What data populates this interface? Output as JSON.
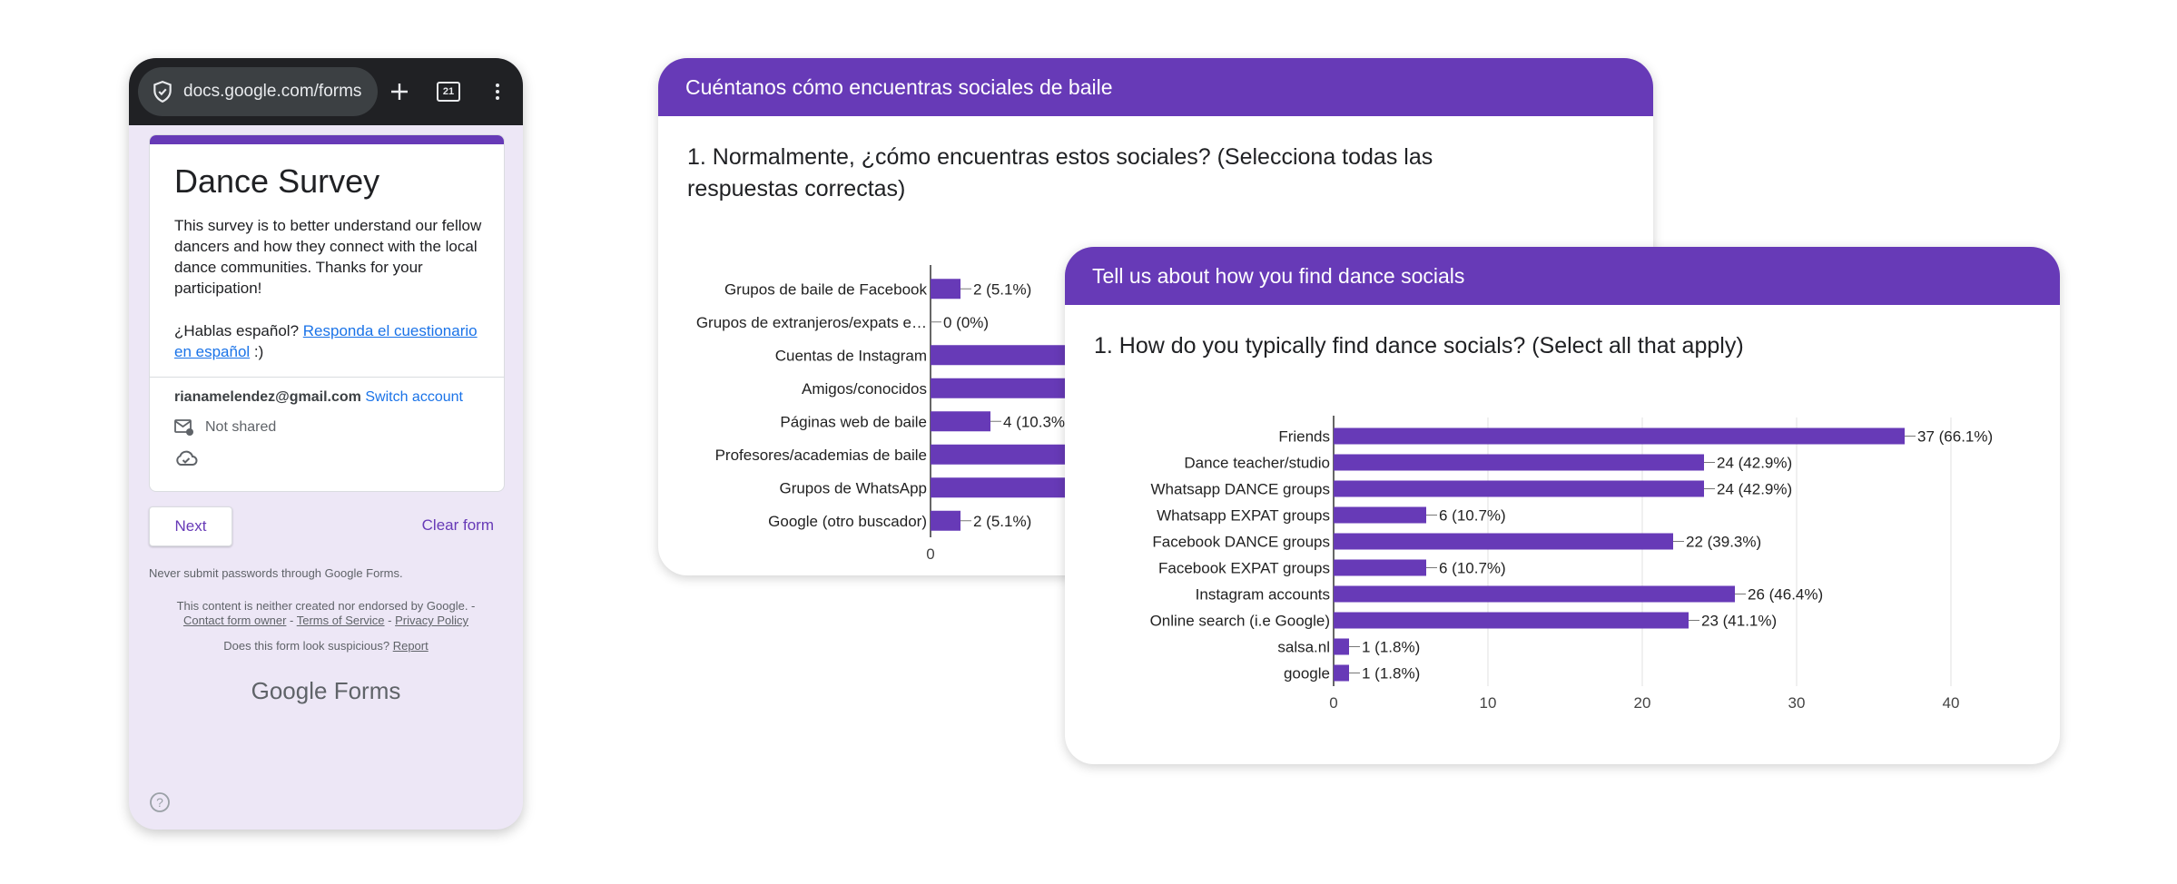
{
  "browser": {
    "url": "docs.google.com/forms",
    "tab_count": "21"
  },
  "form": {
    "title": "Dance Survey",
    "description": "This survey is to better understand our fellow dancers and how they connect with the local dance communities. Thanks for your participation!",
    "spanish_prompt": "¿Hablas español?",
    "spanish_link": "Responda el cuestionario en español",
    "spanish_suffix": " :)",
    "account_email": "rianamelendez@gmail.com",
    "switch_account": "Switch account",
    "not_shared": "Not shared",
    "next_button": "Next",
    "clear_form": "Clear form",
    "password_warning": "Never submit passwords through Google Forms.",
    "disclaimer_start": "This content is neither created nor endorsed by Google. -",
    "contact_owner": "Contact form owner",
    "terms": "Terms of Service",
    "privacy": "Privacy Policy",
    "sep": " - ",
    "suspicious_text": "Does this form look suspicious?",
    "report": "Report",
    "logo_google": "Google",
    "logo_forms": "Forms"
  },
  "colors": {
    "accent": "#673ab7",
    "bar": "#673ab7"
  },
  "card_es": {
    "header": "Cuéntanos cómo encuentras sociales de baile",
    "question": "1. Normalmente, ¿cómo encuentras estos sociales? (Selecciona todas las respuestas correctas)"
  },
  "card_en": {
    "header": "Tell us about how you find dance socials",
    "question": "1. How do you typically find dance socials? (Select all that apply)"
  },
  "chart_data": [
    {
      "type": "bar",
      "orientation": "horizontal",
      "categories": [
        "Grupos de baile de Facebook",
        "Grupos de extranjeros/expats e…",
        "Cuentas de Instagram",
        "Amigos/conocidos",
        "Páginas web de baile",
        "Profesores/academias de baile",
        "Grupos de WhatsApp",
        "Google (otro buscador)"
      ],
      "values": [
        2,
        0,
        null,
        null,
        4,
        null,
        null,
        2
      ],
      "data_labels": [
        "2 (5.1%)",
        "0 (0%)",
        "",
        "",
        "4 (10.3%",
        "",
        "",
        "2 (5.1%)"
      ],
      "ticks": [
        "0"
      ],
      "note": "partially obscured by overlapping card"
    },
    {
      "type": "bar",
      "orientation": "horizontal",
      "categories": [
        "Friends",
        "Dance teacher/studio",
        "Whatsapp DANCE groups",
        "Whatsapp EXPAT groups",
        "Facebook DANCE groups",
        "Facebook EXPAT groups",
        "Instagram accounts",
        "Online search (i.e Google)",
        "salsa.nl",
        "google"
      ],
      "values": [
        37,
        24,
        24,
        6,
        22,
        6,
        26,
        23,
        1,
        1
      ],
      "data_labels": [
        "37 (66.1%)",
        "24 (42.9%)",
        "24 (42.9%)",
        "6 (10.7%)",
        "22 (39.3%)",
        "6 (10.7%)",
        "26 (46.4%)",
        "23 (41.1%)",
        "1 (1.8%)",
        "1 (1.8%)"
      ],
      "xlim": [
        0,
        40
      ],
      "ticks": [
        "0",
        "10",
        "20",
        "30",
        "40"
      ]
    }
  ]
}
